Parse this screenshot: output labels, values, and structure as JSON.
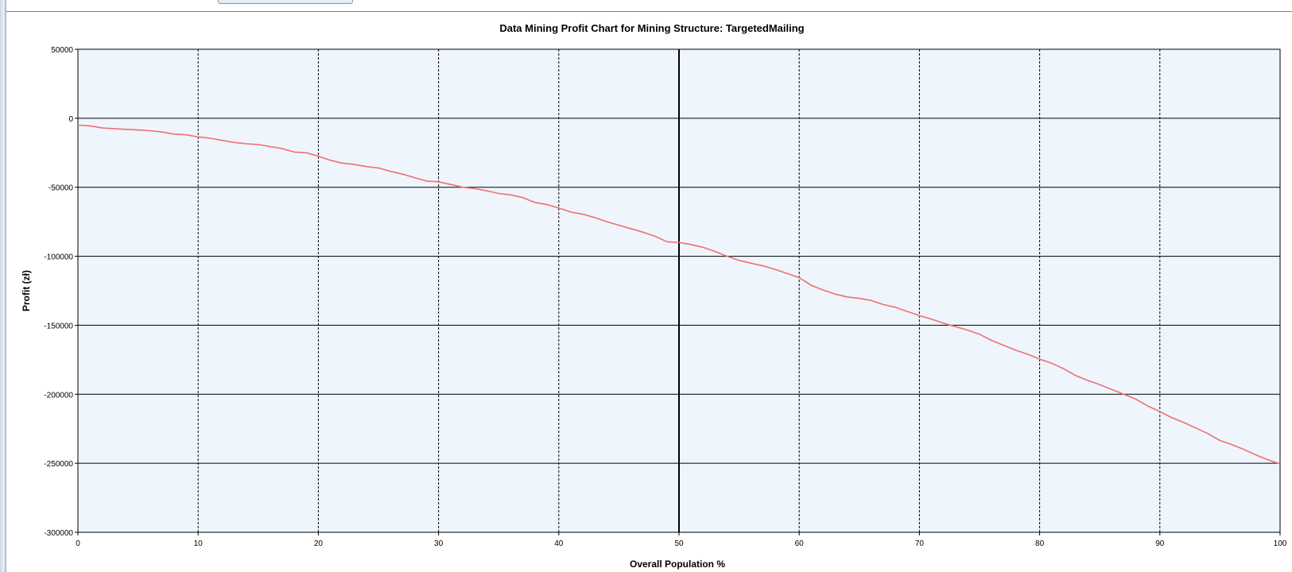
{
  "chart_data": {
    "type": "line",
    "title": "Data Mining Profit Chart for Mining Structure: TargetedMailing",
    "xlabel": "Overall Population %",
    "ylabel": "Profit (zł)",
    "xlim": [
      0,
      100
    ],
    "ylim": [
      -300000,
      50000
    ],
    "x_ticks": [
      0,
      10,
      20,
      30,
      40,
      50,
      60,
      70,
      80,
      90,
      100
    ],
    "y_ticks": [
      50000,
      0,
      -50000,
      -100000,
      -150000,
      -200000,
      -250000,
      -300000
    ],
    "grid": true,
    "plot_background": "#eef5fd",
    "highlight_x": 50,
    "series": [
      {
        "color": "#f07070",
        "x": [
          0,
          1,
          2,
          3,
          4,
          5,
          6,
          7,
          8,
          9,
          10,
          11,
          12,
          13,
          14,
          15,
          16,
          17,
          18,
          19,
          20,
          21,
          22,
          23,
          24,
          25,
          26,
          27,
          28,
          29,
          30,
          31,
          32,
          33,
          34,
          35,
          36,
          37,
          38,
          39,
          40,
          41,
          42,
          43,
          44,
          45,
          46,
          47,
          48,
          49,
          50,
          51,
          52,
          53,
          54,
          55,
          56,
          57,
          58,
          59,
          60,
          61,
          62,
          63,
          64,
          65,
          66,
          67,
          68,
          69,
          70,
          71,
          72,
          73,
          74,
          75,
          76,
          77,
          78,
          79,
          80,
          81,
          82,
          83,
          84,
          85,
          86,
          87,
          88,
          89,
          90,
          91,
          92,
          93,
          94,
          95,
          96,
          97,
          98,
          99,
          100
        ],
        "y": [
          -5000,
          -5500,
          -7000,
          -7500,
          -8000,
          -8500,
          -9000,
          -10000,
          -11500,
          -12000,
          -13500,
          -14500,
          -16000,
          -17500,
          -18500,
          -19000,
          -20500,
          -22000,
          -24500,
          -25000,
          -27500,
          -30500,
          -32500,
          -33500,
          -35000,
          -36000,
          -38500,
          -40500,
          -43000,
          -45500,
          -46000,
          -48000,
          -50000,
          -51000,
          -52500,
          -54500,
          -55500,
          -57500,
          -61000,
          -62500,
          -65000,
          -68000,
          -69500,
          -72000,
          -75000,
          -77500,
          -80000,
          -82500,
          -85500,
          -89500,
          -90000,
          -91500,
          -93500,
          -96500,
          -100000,
          -103000,
          -105000,
          -107000,
          -109500,
          -112500,
          -115500,
          -121000,
          -124500,
          -127500,
          -129500,
          -130500,
          -132000,
          -135000,
          -137000,
          -140000,
          -143000,
          -145500,
          -148500,
          -151000,
          -153500,
          -156500,
          -161000,
          -164500,
          -168000,
          -171000,
          -174500,
          -177500,
          -181500,
          -186500,
          -190000,
          -193000,
          -196500,
          -200000,
          -203500,
          -208500,
          -212500,
          -217000,
          -220500,
          -224500,
          -228500,
          -233500,
          -236500,
          -240000,
          -244000,
          -247500,
          -250500
        ]
      }
    ]
  }
}
